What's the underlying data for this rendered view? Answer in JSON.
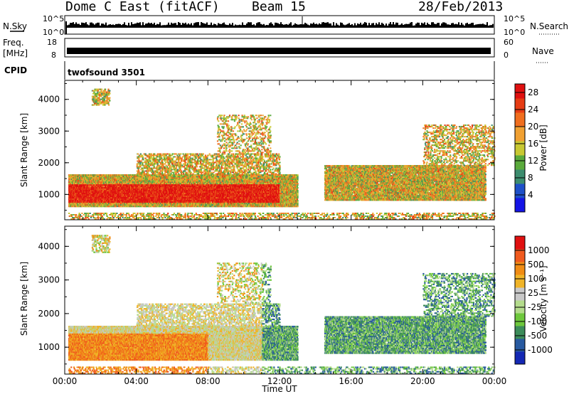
{
  "header": {
    "title": "Dome C East (fitACF)",
    "beam": "Beam 15",
    "date": "28/Feb/2013"
  },
  "strip_labels": {
    "nsky": "N.Sky",
    "nsearch": "N.Search",
    "freq": "Freq.",
    "mhz": "[MHz]",
    "nave": "Nave",
    "cpid": "CPID",
    "cpid_value": "twofsound 3501",
    "nsky_ticks": [
      "10^5",
      "10^0"
    ],
    "nsearch_ticks": [
      "10^5",
      "10^0"
    ],
    "freq_ticks": [
      "18",
      "8"
    ],
    "nave_ticks": [
      "60",
      "0"
    ]
  },
  "colors": {
    "power": [
      "#1414e6",
      "#1e50c8",
      "#3c8c6e",
      "#5aaa3c",
      "#c8c832",
      "#f0a032",
      "#f06e1e",
      "#e63c14",
      "#e01010"
    ],
    "velocity": [
      "#e01010",
      "#f05a1e",
      "#f08c14",
      "#f0b428",
      "#c8c8c8",
      "#b4dc8c",
      "#6ec83c",
      "#3c8c5a",
      "#285aa0",
      "#1428b4"
    ]
  },
  "chart_data": [
    {
      "type": "heatmap",
      "panel": "power",
      "xlabel": "",
      "ylabel": "Slant Range [km]",
      "xlim": [
        0,
        24
      ],
      "ylim": [
        200,
        4600
      ],
      "yticks": [
        "1000",
        "2000",
        "3000",
        "4000"
      ],
      "colorbar_label": "Power [dB]",
      "colorbar_ticks": [
        "4",
        "8",
        "12",
        "16",
        "20",
        "24",
        "28"
      ],
      "colorbar_range": [
        0,
        30
      ]
    },
    {
      "type": "heatmap",
      "panel": "velocity",
      "xlabel": "Time UT",
      "ylabel": "Slant Range [km]",
      "xlim": [
        0,
        24
      ],
      "ylim": [
        200,
        4600
      ],
      "xticks": [
        "00:00",
        "04:00",
        "08:00",
        "12:00",
        "16:00",
        "20:00",
        "00:00"
      ],
      "yticks": [
        "1000",
        "2000",
        "3000",
        "4000"
      ],
      "colorbar_label": "Velocity [m s⁻¹]",
      "colorbar_ticks": [
        "1000",
        "500",
        "100",
        "25",
        "-25",
        "-100",
        "-500",
        "-1000"
      ]
    }
  ]
}
